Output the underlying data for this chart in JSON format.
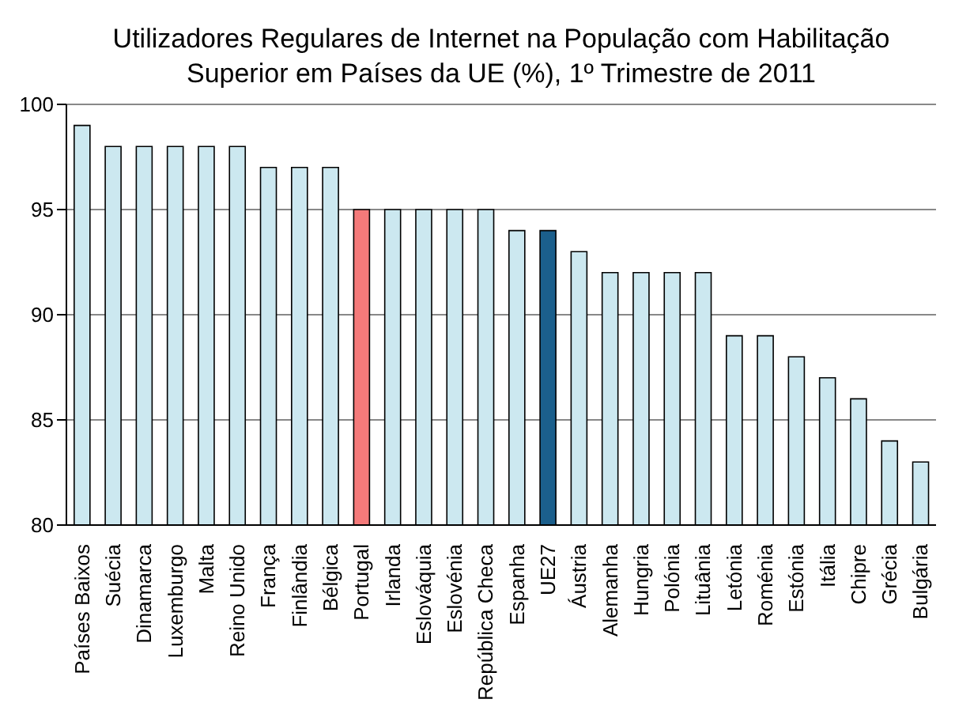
{
  "chart_data": {
    "type": "bar",
    "title": "Utilizadores Regulares de Internet na População com Habilitação Superior em Países da UE (%), 1º Trimestre de 2011",
    "categories": [
      "Países Baixos",
      "Suécia",
      "Dinamarca",
      "Luxemburgo",
      "Malta",
      "Reino Unido",
      "França",
      "Finlândia",
      "Bélgica",
      "Portugal",
      "Irlanda",
      "Eslováquia",
      "Eslovénia",
      "República Checa",
      "Espanha",
      "UE27",
      "Áustria",
      "Alemanha",
      "Hungria",
      "Polónia",
      "Lituânia",
      "Letónia",
      "Roménia",
      "Estónia",
      "Itália",
      "Chipre",
      "Grécia",
      "Bulgária"
    ],
    "values": [
      99,
      98,
      98,
      98,
      98,
      98,
      97,
      97,
      97,
      95,
      95,
      95,
      95,
      95,
      94,
      94,
      93,
      92,
      92,
      92,
      92,
      89,
      89,
      88,
      87,
      86,
      84,
      83
    ],
    "colors": [
      "#cce8f0",
      "#cce8f0",
      "#cce8f0",
      "#cce8f0",
      "#cce8f0",
      "#cce8f0",
      "#cce8f0",
      "#cce8f0",
      "#cce8f0",
      "#f47a7a",
      "#cce8f0",
      "#cce8f0",
      "#cce8f0",
      "#cce8f0",
      "#cce8f0",
      "#1b5f8c",
      "#cce8f0",
      "#cce8f0",
      "#cce8f0",
      "#cce8f0",
      "#cce8f0",
      "#cce8f0",
      "#cce8f0",
      "#cce8f0",
      "#cce8f0",
      "#cce8f0",
      "#cce8f0",
      "#cce8f0"
    ],
    "ylim": [
      80,
      100
    ],
    "yticks": [
      80,
      85,
      90,
      95,
      100
    ],
    "grid": "y"
  }
}
